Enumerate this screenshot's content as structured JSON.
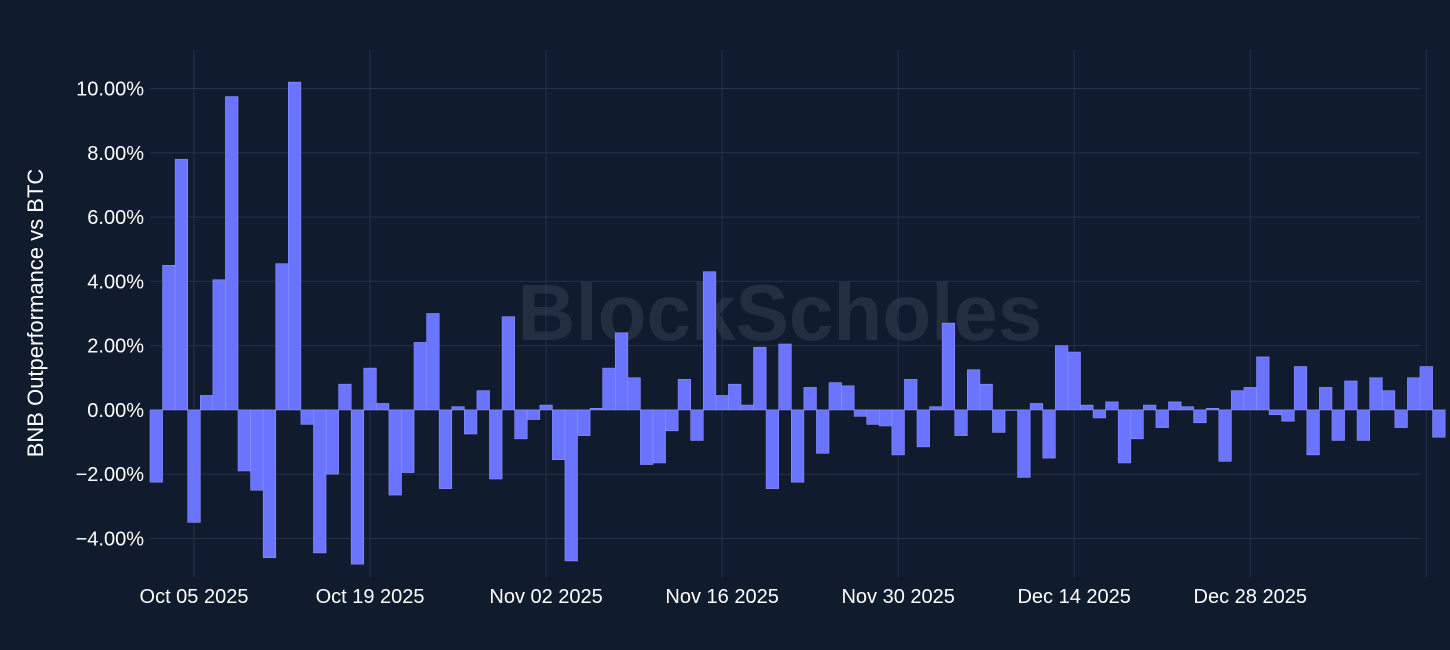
{
  "watermark": "BlockScholes",
  "colors": {
    "background": "#111b2e",
    "grid": "#24324f",
    "bar": "#6b74ff",
    "bar_edge": "#8b92ff"
  },
  "chart_data": {
    "type": "bar",
    "ylabel": "BNB Outperformance vs BTC",
    "xlabel": "",
    "title": "",
    "y_unit": "%",
    "ylim": [
      -5.2,
      11.2
    ],
    "y_ticks": [
      10,
      8,
      6,
      4,
      2,
      0,
      -2,
      -4
    ],
    "y_tick_labels": [
      "10.00%",
      "8.00%",
      "6.00%",
      "4.00%",
      "2.00%",
      "0.00%",
      "−2.00%",
      "−4.00%"
    ],
    "x_start": "2025-10-02",
    "x_end": "2026-01-10",
    "x_ticks": [
      "2025-10-05",
      "2025-10-19",
      "2025-11-02",
      "2025-11-16",
      "2025-11-30",
      "2025-12-14",
      "2025-12-28",
      "2026-01-11"
    ],
    "x_tick_labels": [
      "Oct 05 2025",
      "Oct 19 2025",
      "Nov 02 2025",
      "Nov 16 2025",
      "Nov 30 2025",
      "Dec 14 2025",
      "Dec 28 2025",
      ""
    ],
    "grid": true,
    "series": [
      {
        "values": [
          -2.25,
          4.5,
          7.8,
          -3.5,
          0.45,
          4.05,
          9.75,
          -1.9,
          -2.5,
          -4.6,
          4.55,
          10.2,
          -0.45,
          -4.45,
          -2.0,
          0.8,
          -4.8,
          1.3,
          0.2,
          -2.65,
          -1.95,
          2.1,
          3.0,
          -2.45,
          0.1,
          -0.75,
          0.6,
          -2.15,
          2.9,
          -0.9,
          -0.3,
          0.15,
          -1.55,
          -4.7,
          -0.8,
          0.05,
          1.3,
          2.4,
          1.0,
          -1.7,
          -1.65,
          -0.65,
          0.95,
          -0.95,
          4.3,
          0.45,
          0.8,
          0.15,
          1.95,
          -2.45,
          2.05,
          -2.25,
          0.7,
          -1.35,
          0.85,
          0.75,
          -0.2,
          -0.45,
          -0.5,
          -1.4,
          0.95,
          -1.15,
          0.1,
          2.7,
          -0.8,
          1.25,
          0.8,
          -0.7,
          0.0,
          -2.1,
          0.2,
          -1.5,
          2.0,
          1.8,
          0.15,
          -0.25,
          0.25,
          -1.65,
          -0.9,
          0.15,
          -0.55,
          0.25,
          0.1,
          -0.4,
          0.05,
          -1.6,
          0.6,
          0.7,
          1.65,
          -0.15,
          -0.35,
          1.35,
          -1.4,
          0.7,
          -0.95,
          0.9,
          -0.95,
          1.0,
          0.6,
          -0.55,
          1.0,
          1.35,
          -0.85
        ]
      }
    ]
  }
}
